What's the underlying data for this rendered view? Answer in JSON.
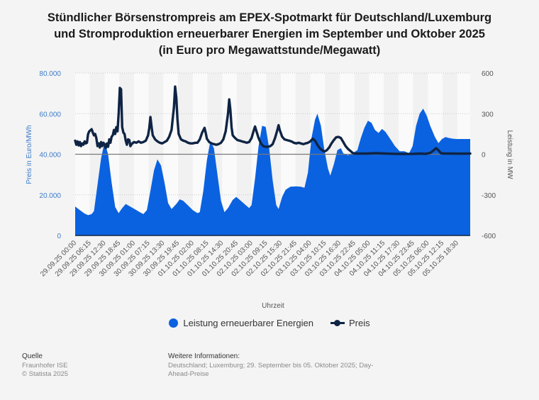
{
  "title": {
    "line1": "Stündlicher Börsenstrompreis am EPEX-Spotmarkt für Deutschland/Luxemburg",
    "line2": "und Stromproduktion erneuerbarer Energien im September und Oktober 2025",
    "line3": "(in Euro pro Megawattstunde/Megawatt)"
  },
  "legend": {
    "renewables": "Leistung erneuerbarer Energien",
    "price": "Preis"
  },
  "footer": {
    "source_head": "Quelle",
    "source_1": "Fraunhofer ISE",
    "source_2": "© Statista 2025",
    "info_head": "Weitere Informationen:",
    "info_text": "Deutschland; Luxemburg; 29. September bis 05. Oktober 2025; Day-Ahead-Preise"
  },
  "colors": {
    "renewables": "#0b62e0",
    "price": "#0f2444",
    "axis_left": "#3d7cc9",
    "grid": "#c8c8c8",
    "zero_line": "#7a7a7a",
    "band_light": "#fafafa",
    "band_dark": "#f1f1f1"
  },
  "chart_data": {
    "type": "area+line",
    "title": "Stündlicher Börsenstrompreis am EPEX-Spotmarkt für Deutschland/Luxemburg und Stromproduktion erneuerbarer Energien im September und Oktober 2025 (in Euro pro Megawattstunde/Megawatt)",
    "xlabel": "Uhrzeit",
    "ylabel_left": "Preis in Euro/MWh",
    "ylabel_right": "Leistung in MW",
    "x_unit": "hours since 29.09.25 00:00",
    "xlim": [
      0,
      168
    ],
    "ylim_left": [
      0,
      80000
    ],
    "ylim_right": [
      -600,
      600
    ],
    "yticks_left": [
      "0",
      "20.000",
      "40.000",
      "60.000",
      "80.000"
    ],
    "yticks_right": [
      "-600",
      "-300",
      "0",
      "300",
      "600"
    ],
    "xticks": [
      "29.09.25 00:00",
      "29.09.25 06:15",
      "29.09.25 12:30",
      "29.09.25 18:45",
      "30.09.25 01:00",
      "30.09.25 07:15",
      "30.09.25 13:30",
      "30.09.25 19:45",
      "01.10.25 02:00",
      "01.10.25 08:15",
      "01.10.25 14:30",
      "01.10.25 20:45",
      "02.10.25 03:00",
      "02.10.25 09:15",
      "02.10.25 15:30",
      "02.10.25 21:45",
      "03.10.25 04:00",
      "03.10.25 10:15",
      "03.10.25 16:30",
      "03.10.25 22:45",
      "04.10.25 05:00",
      "04.10.25 11:15",
      "04.10.25 17:30",
      "04.10.25 23:45",
      "05.10.25 06:00",
      "05.10.25 12:15",
      "05.10.25 18:30"
    ],
    "xtick_step_hours": 6.25,
    "grid": true,
    "legend_position": "bottom",
    "series": [
      {
        "name": "Leistung erneuerbarer Energien",
        "type": "area",
        "axis": "left",
        "points": [
          [
            0,
            14300
          ],
          [
            2,
            12500
          ],
          [
            4,
            10800
          ],
          [
            5.5,
            10000
          ],
          [
            7,
            10500
          ],
          [
            8,
            12000
          ],
          [
            9.5,
            25000
          ],
          [
            11,
            38000
          ],
          [
            12.5,
            46000
          ],
          [
            14,
            40000
          ],
          [
            15.5,
            26000
          ],
          [
            17,
            14000
          ],
          [
            18.5,
            11000
          ],
          [
            20,
            13500
          ],
          [
            21.5,
            15500
          ],
          [
            23,
            14500
          ],
          [
            25,
            13200
          ],
          [
            27,
            11800
          ],
          [
            29,
            10500
          ],
          [
            30.5,
            12500
          ],
          [
            32,
            22000
          ],
          [
            33.5,
            32000
          ],
          [
            35,
            37500
          ],
          [
            36.5,
            34500
          ],
          [
            38,
            26000
          ],
          [
            39.5,
            16000
          ],
          [
            41,
            13000
          ],
          [
            43,
            15500
          ],
          [
            44.5,
            17800
          ],
          [
            46,
            17000
          ],
          [
            48,
            14800
          ],
          [
            50,
            12500
          ],
          [
            52,
            11000
          ],
          [
            53,
            11500
          ],
          [
            54.5,
            22000
          ],
          [
            56,
            37000
          ],
          [
            57.5,
            46500
          ],
          [
            59,
            43000
          ],
          [
            60.5,
            30000
          ],
          [
            62,
            17000
          ],
          [
            63.5,
            11500
          ],
          [
            65,
            13500
          ],
          [
            67,
            17500
          ],
          [
            68.5,
            19000
          ],
          [
            70,
            17500
          ],
          [
            72,
            15500
          ],
          [
            74,
            13500
          ],
          [
            75,
            15000
          ],
          [
            76.5,
            28000
          ],
          [
            78,
            44000
          ],
          [
            79.5,
            54000
          ],
          [
            81,
            53500
          ],
          [
            82.5,
            43000
          ],
          [
            84,
            27000
          ],
          [
            85.5,
            15000
          ],
          [
            86.5,
            13000
          ],
          [
            88,
            19000
          ],
          [
            89.5,
            22500
          ],
          [
            91.5,
            24000
          ],
          [
            94,
            24200
          ],
          [
            96,
            24000
          ],
          [
            97.5,
            23500
          ],
          [
            99,
            31000
          ],
          [
            100.5,
            48000
          ],
          [
            102,
            57000
          ],
          [
            103,
            60000
          ],
          [
            104.5,
            54000
          ],
          [
            106,
            42000
          ],
          [
            107.5,
            33000
          ],
          [
            108.5,
            29500
          ],
          [
            110,
            35000
          ],
          [
            111.5,
            42000
          ],
          [
            113,
            43000
          ],
          [
            114,
            40500
          ],
          [
            116,
            39500
          ],
          [
            118,
            40500
          ],
          [
            120,
            42000
          ],
          [
            121.5,
            48000
          ],
          [
            123,
            53000
          ],
          [
            124.5,
            56500
          ],
          [
            126,
            55500
          ],
          [
            127.5,
            52000
          ],
          [
            129,
            50500
          ],
          [
            130.5,
            52500
          ],
          [
            132,
            51000
          ],
          [
            134,
            47500
          ],
          [
            136,
            44000
          ],
          [
            138,
            41500
          ],
          [
            140,
            41500
          ],
          [
            142,
            40500
          ],
          [
            143.5,
            44000
          ],
          [
            145,
            54000
          ],
          [
            146.5,
            60000
          ],
          [
            148,
            62500
          ],
          [
            149.5,
            59000
          ],
          [
            151,
            54000
          ],
          [
            153,
            48500
          ],
          [
            154.5,
            45500
          ],
          [
            156,
            47500
          ],
          [
            157.5,
            48500
          ],
          [
            159,
            48000
          ],
          [
            160.5,
            47700
          ],
          [
            162,
            47500
          ],
          [
            168,
            47500
          ]
        ]
      },
      {
        "name": "Preis",
        "type": "line",
        "axis": "right",
        "points": [
          [
            0,
            100
          ],
          [
            0.5,
            70
          ],
          [
            1,
            95
          ],
          [
            1.5,
            65
          ],
          [
            2,
            90
          ],
          [
            2.5,
            60
          ],
          [
            3,
            80
          ],
          [
            3.5,
            70
          ],
          [
            4,
            95
          ],
          [
            4.5,
            80
          ],
          [
            5,
            85
          ],
          [
            5.5,
            150
          ],
          [
            6,
            170
          ],
          [
            7,
            185
          ],
          [
            7.5,
            160
          ],
          [
            8,
            140
          ],
          [
            8.5,
            150
          ],
          [
            9,
            120
          ],
          [
            9.5,
            60
          ],
          [
            10,
            80
          ],
          [
            10.5,
            50
          ],
          [
            11,
            90
          ],
          [
            11.5,
            60
          ],
          [
            12,
            85
          ],
          [
            12.5,
            75
          ],
          [
            13,
            45
          ],
          [
            13.5,
            80
          ],
          [
            14,
            55
          ],
          [
            14.5,
            110
          ],
          [
            15,
            85
          ],
          [
            15.5,
            130
          ],
          [
            16,
            140
          ],
          [
            16.5,
            180
          ],
          [
            17,
            150
          ],
          [
            17.5,
            200
          ],
          [
            18,
            170
          ],
          [
            18.5,
            300
          ],
          [
            19,
            490
          ],
          [
            19.5,
            480
          ],
          [
            20,
            200
          ],
          [
            20.5,
            160
          ],
          [
            21,
            150
          ],
          [
            21.5,
            100
          ],
          [
            22,
            70
          ],
          [
            22.5,
            110
          ],
          [
            23,
            105
          ],
          [
            23.5,
            60
          ],
          [
            24,
            75
          ],
          [
            25,
            90
          ],
          [
            26,
            85
          ],
          [
            27,
            95
          ],
          [
            28,
            85
          ],
          [
            29,
            90
          ],
          [
            30,
            100
          ],
          [
            31,
            140
          ],
          [
            31.5,
            190
          ],
          [
            32,
            275
          ],
          [
            32.5,
            200
          ],
          [
            33,
            140
          ],
          [
            34,
            110
          ],
          [
            35,
            95
          ],
          [
            36,
            85
          ],
          [
            37,
            80
          ],
          [
            38,
            90
          ],
          [
            39,
            100
          ],
          [
            40,
            130
          ],
          [
            41,
            180
          ],
          [
            42,
            350
          ],
          [
            42.5,
            500
          ],
          [
            43,
            420
          ],
          [
            43.5,
            260
          ],
          [
            44,
            150
          ],
          [
            45,
            110
          ],
          [
            46,
            100
          ],
          [
            47,
            95
          ],
          [
            48,
            85
          ],
          [
            49,
            80
          ],
          [
            50,
            80
          ],
          [
            51,
            85
          ],
          [
            52,
            85
          ],
          [
            53,
            110
          ],
          [
            54,
            160
          ],
          [
            55,
            195
          ],
          [
            55.5,
            160
          ],
          [
            56,
            115
          ],
          [
            57,
            90
          ],
          [
            58,
            80
          ],
          [
            59,
            75
          ],
          [
            60,
            70
          ],
          [
            61,
            75
          ],
          [
            62,
            85
          ],
          [
            63,
            110
          ],
          [
            64,
            170
          ],
          [
            65,
            300
          ],
          [
            65.5,
            405
          ],
          [
            66,
            330
          ],
          [
            66.5,
            200
          ],
          [
            67,
            140
          ],
          [
            68,
            120
          ],
          [
            69,
            105
          ],
          [
            70,
            100
          ],
          [
            71,
            95
          ],
          [
            72,
            90
          ],
          [
            73,
            85
          ],
          [
            74,
            90
          ],
          [
            75,
            120
          ],
          [
            76,
            180
          ],
          [
            76.5,
            205
          ],
          [
            77,
            175
          ],
          [
            78,
            120
          ],
          [
            79,
            80
          ],
          [
            80,
            60
          ],
          [
            81,
            55
          ],
          [
            82,
            55
          ],
          [
            83,
            60
          ],
          [
            84,
            75
          ],
          [
            85,
            120
          ],
          [
            86,
            180
          ],
          [
            86.5,
            215
          ],
          [
            87,
            180
          ],
          [
            88,
            130
          ],
          [
            89,
            110
          ],
          [
            90,
            105
          ],
          [
            91,
            100
          ],
          [
            92,
            95
          ],
          [
            93,
            85
          ],
          [
            94,
            80
          ],
          [
            95,
            85
          ],
          [
            96,
            80
          ],
          [
            97,
            75
          ],
          [
            98,
            80
          ],
          [
            99,
            85
          ],
          [
            100,
            95
          ],
          [
            101,
            115
          ],
          [
            102,
            100
          ],
          [
            103,
            70
          ],
          [
            104,
            45
          ],
          [
            105,
            30
          ],
          [
            106,
            20
          ],
          [
            107,
            30
          ],
          [
            108,
            50
          ],
          [
            109,
            80
          ],
          [
            110,
            105
          ],
          [
            111,
            125
          ],
          [
            112,
            128
          ],
          [
            113,
            120
          ],
          [
            114,
            90
          ],
          [
            115,
            60
          ],
          [
            116,
            40
          ],
          [
            117,
            25
          ],
          [
            118,
            10
          ],
          [
            119,
            5
          ],
          [
            120,
            5
          ],
          [
            124,
            5
          ],
          [
            128,
            8
          ],
          [
            132,
            5
          ],
          [
            136,
            3
          ],
          [
            140,
            2
          ],
          [
            144,
            3
          ],
          [
            147,
            5
          ],
          [
            149,
            3
          ],
          [
            151,
            10
          ],
          [
            152.5,
            30
          ],
          [
            153.5,
            45
          ],
          [
            154.5,
            30
          ],
          [
            155.5,
            8
          ],
          [
            157,
            5
          ],
          [
            160,
            5
          ],
          [
            164,
            4
          ],
          [
            168,
            5
          ]
        ]
      }
    ]
  }
}
